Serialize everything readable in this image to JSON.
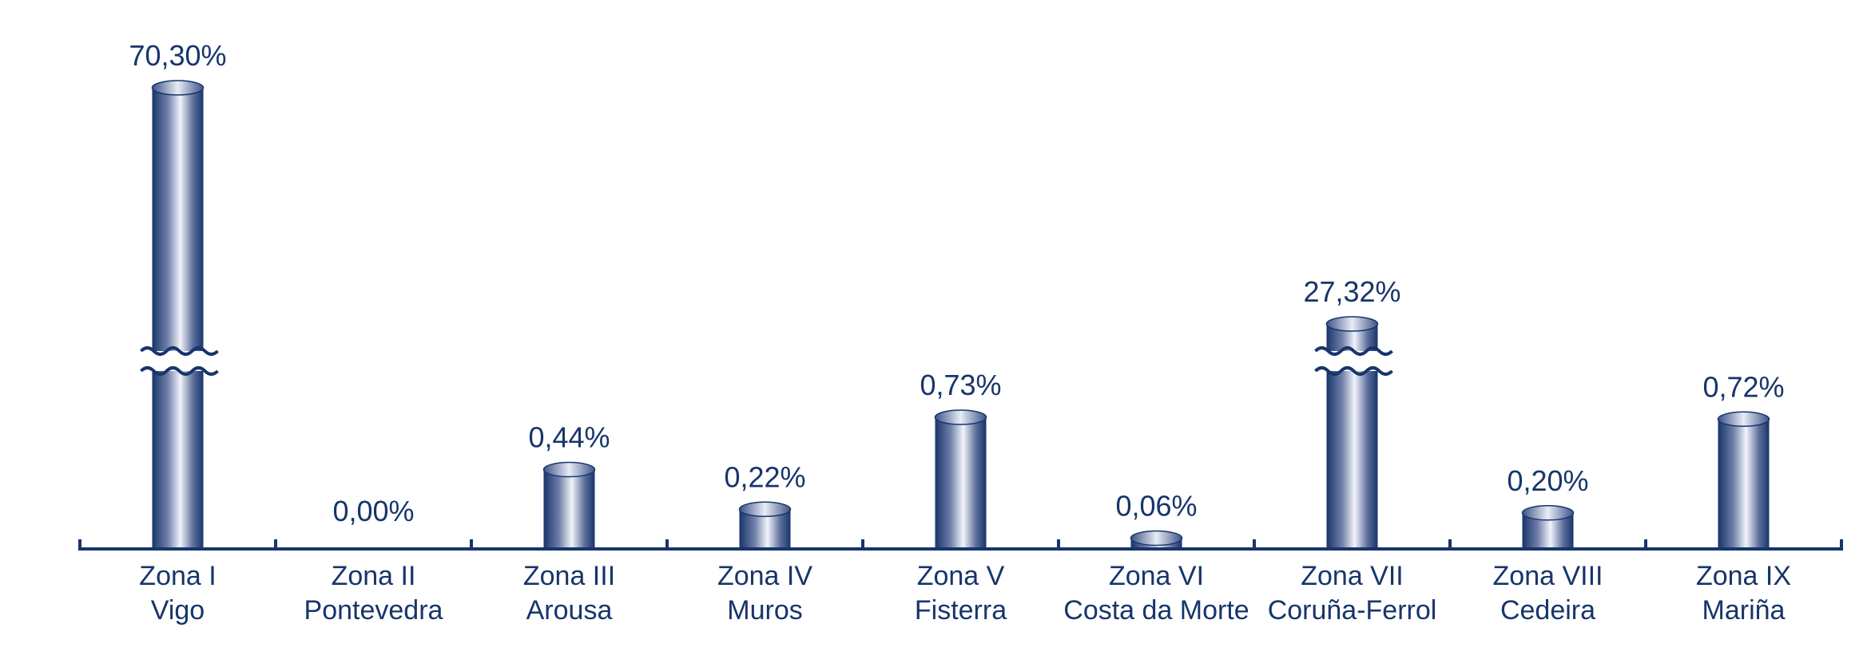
{
  "chart_data": {
    "type": "bar",
    "title": "",
    "xlabel": "",
    "ylabel": "",
    "categories": [
      [
        "Zona I",
        "Vigo"
      ],
      [
        "Zona II",
        "Pontevedra"
      ],
      [
        "Zona III",
        "Arousa"
      ],
      [
        "Zona IV",
        "Muros"
      ],
      [
        "Zona V",
        "Fisterra"
      ],
      [
        "Zona VI",
        "Costa da Morte"
      ],
      [
        "Zona VII",
        "Coruña-Ferrol"
      ],
      [
        "Zona VIII",
        "Cedeira"
      ],
      [
        "Zona IX",
        "Mariña"
      ]
    ],
    "values": [
      70.3,
      0.0,
      0.44,
      0.22,
      0.73,
      0.06,
      27.32,
      0.2,
      0.72
    ],
    "value_labels": [
      "70,30%",
      "0,00%",
      "0,44%",
      "0,22%",
      "0,73%",
      "0,06%",
      "27,32%",
      "0,20%",
      "0,72%"
    ],
    "axis_break": true,
    "grid": false,
    "legend": "none",
    "colors": {
      "bar_dark": "#17356b",
      "bar_light": "#f2f4fa",
      "axis": "#17356b"
    }
  }
}
